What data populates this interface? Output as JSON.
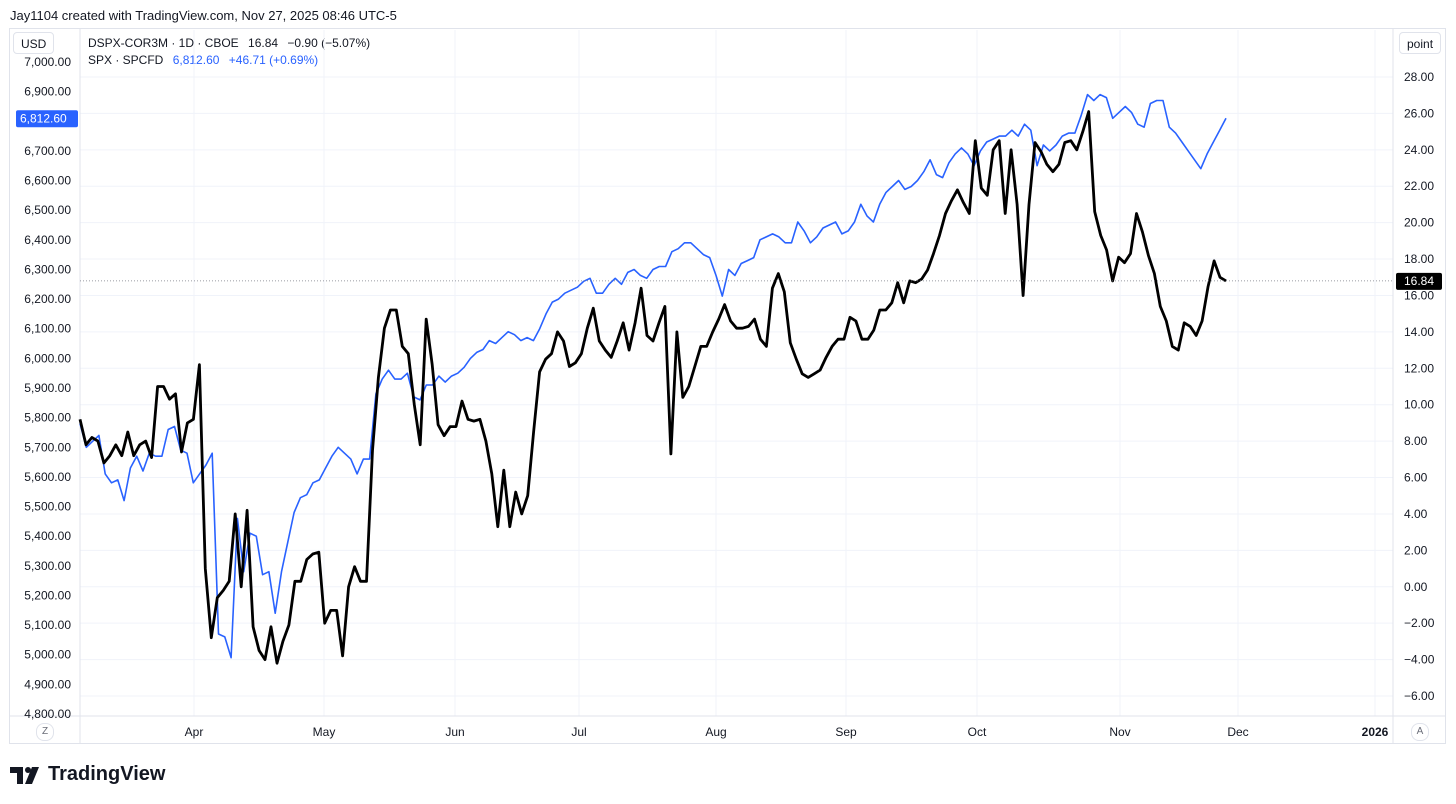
{
  "header": {
    "text": "Jay1104 created with TradingView.com, Nov 27, 2025 08:46 UTC-5"
  },
  "buttons": {
    "currency": "USD",
    "unit": "point"
  },
  "legend": {
    "row1": {
      "symbol": "DSPX-COR3M · 1D · CBOE",
      "last": "16.84",
      "change": "−0.90 (−5.07%)"
    },
    "row2": {
      "symbol": "SPX · SPCFD",
      "last": "6,812.60",
      "change": "+46.71 (+0.69%)"
    }
  },
  "corners": {
    "left": "Z",
    "right": "A"
  },
  "brand": {
    "name": "TradingView"
  },
  "colors": {
    "spx": "#2962ff",
    "dspx": "#000000",
    "label_bg": "#2962ff",
    "grid": "#f0f3fa"
  },
  "chart_data": {
    "type": "line",
    "x_labels": [
      "Apr",
      "May",
      "Jun",
      "Jul",
      "Aug",
      "Sep",
      "Oct",
      "Nov",
      "Dec",
      "2026"
    ],
    "left_axis": {
      "ticks": [
        "7,000.00",
        "6,900.00",
        "6,800.00",
        "6,700.00",
        "6,600.00",
        "6,500.00",
        "6,400.00",
        "6,300.00",
        "6,200.00",
        "6,100.00",
        "6,000.00",
        "5,900.00",
        "5,800.00",
        "5,700.00",
        "5,600.00",
        "5,500.00",
        "5,400.00",
        "5,300.00",
        "5,200.00",
        "5,100.00",
        "5,000.00",
        "4,900.00",
        "4,800.00"
      ],
      "range": [
        4800,
        7000
      ],
      "last_label": "6,812.60"
    },
    "right_axis": {
      "ticks": [
        "28.00",
        "26.00",
        "24.00",
        "22.00",
        "20.00",
        "18.00",
        "16.00",
        "14.00",
        "12.00",
        "10.00",
        "8.00",
        "6.00",
        "4.00",
        "2.00",
        "0.00",
        "−2.00",
        "−4.00",
        "−6.00"
      ],
      "range": [
        -6,
        28
      ],
      "last_label": "16.84"
    },
    "series": [
      {
        "name": "SPX · SPCFD",
        "axis": "left",
        "values": [
          5780,
          5700,
          5720,
          5740,
          5610,
          5580,
          5590,
          5520,
          5630,
          5670,
          5620,
          5680,
          5670,
          5670,
          5760,
          5770,
          5690,
          5680,
          5580,
          5610,
          5640,
          5680,
          5070,
          5060,
          4990,
          5460,
          5280,
          5410,
          5400,
          5270,
          5280,
          5140,
          5280,
          5380,
          5480,
          5530,
          5540,
          5580,
          5590,
          5630,
          5670,
          5700,
          5680,
          5660,
          5610,
          5660,
          5660,
          5880,
          5930,
          5960,
          5930,
          5930,
          5950,
          5870,
          5860,
          5910,
          5910,
          5940,
          5920,
          5940,
          5950,
          5970,
          6000,
          6020,
          6030,
          6060,
          6050,
          6070,
          6090,
          6080,
          6060,
          6070,
          6060,
          6100,
          6150,
          6190,
          6200,
          6220,
          6230,
          6240,
          6260,
          6270,
          6220,
          6220,
          6250,
          6270,
          6250,
          6290,
          6300,
          6280,
          6270,
          6300,
          6310,
          6310,
          6360,
          6370,
          6390,
          6390,
          6370,
          6350,
          6340,
          6280,
          6210,
          6300,
          6280,
          6320,
          6330,
          6340,
          6400,
          6410,
          6420,
          6410,
          6390,
          6390,
          6460,
          6430,
          6390,
          6410,
          6440,
          6450,
          6460,
          6420,
          6430,
          6460,
          6520,
          6480,
          6460,
          6520,
          6560,
          6580,
          6600,
          6570,
          6580,
          6600,
          6630,
          6670,
          6620,
          6610,
          6660,
          6690,
          6710,
          6690,
          6650,
          6700,
          6730,
          6740,
          6750,
          6750,
          6770,
          6750,
          6790,
          6770,
          6650,
          6720,
          6700,
          6720,
          6750,
          6760,
          6760,
          6820,
          6890,
          6870,
          6890,
          6880,
          6810,
          6830,
          6850,
          6830,
          6790,
          6780,
          6860,
          6870,
          6870,
          6780,
          6760,
          6730,
          6700,
          6670,
          6640,
          6690,
          6730,
          6770,
          6810
        ]
      },
      {
        "name": "DSPX-COR3M · 1D · CBOE",
        "axis": "right",
        "values": [
          9.2,
          7.8,
          8.2,
          8.0,
          6.8,
          7.2,
          7.8,
          7.2,
          8.5,
          7.2,
          7.8,
          8.0,
          7.1,
          11.0,
          11.0,
          10.3,
          10.6,
          7.4,
          9.0,
          9.2,
          12.2,
          1.0,
          -2.8,
          -0.6,
          -0.2,
          0.3,
          4.0,
          0.0,
          4.2,
          -2.2,
          -3.5,
          -4.0,
          -2.2,
          -4.2,
          -3.0,
          -2.1,
          0.3,
          0.3,
          1.5,
          1.8,
          1.9,
          -2.0,
          -1.3,
          -1.3,
          -3.8,
          -0.0,
          1.1,
          0.3,
          0.3,
          7.5,
          11.5,
          14.2,
          15.2,
          15.2,
          13.2,
          12.8,
          10.0,
          7.8,
          14.7,
          12.2,
          8.9,
          8.3,
          8.8,
          8.8,
          10.2,
          9.2,
          9.1,
          9.2,
          8.0,
          6.2,
          3.3,
          6.4,
          3.3,
          5.2,
          4.0,
          5.0,
          8.5,
          11.8,
          12.5,
          12.8,
          14.0,
          13.5,
          12.1,
          12.3,
          12.8,
          14.2,
          15.3,
          13.5,
          13.0,
          12.6,
          13.5,
          14.5,
          13.0,
          14.5,
          16.4,
          13.8,
          13.5,
          14.5,
          15.4,
          7.3,
          14.0,
          10.4,
          11.0,
          12.1,
          13.2,
          13.2,
          14.0,
          14.7,
          15.5,
          14.6,
          14.2,
          14.2,
          14.3,
          14.7,
          13.6,
          13.2,
          16.4,
          17.2,
          16.2,
          13.4,
          12.5,
          11.7,
          11.5,
          11.7,
          11.9,
          12.6,
          13.2,
          13.6,
          13.6,
          14.8,
          14.6,
          13.6,
          13.6,
          14.1,
          15.2,
          15.2,
          15.6,
          16.7,
          15.6,
          16.8,
          16.7,
          16.9,
          17.4,
          18.3,
          19.3,
          20.5,
          21.2,
          21.8,
          21.1,
          20.5,
          24.5,
          21.9,
          21.5,
          24.0,
          24.5,
          20.5,
          24.0,
          21.0,
          16.0,
          21.0,
          24.4,
          23.9,
          23.2,
          22.8,
          23.2,
          24.4,
          24.5,
          24.0,
          25.0,
          26.1,
          20.6,
          19.3,
          18.5,
          16.8,
          18.1,
          17.8,
          18.3,
          20.5,
          19.5,
          18.2,
          17.2,
          15.4,
          14.6,
          13.2,
          13.0,
          14.5,
          14.3,
          13.8,
          14.6,
          16.5,
          17.9,
          17.0,
          16.8
        ]
      }
    ],
    "grid": true,
    "legend": "top-left"
  }
}
